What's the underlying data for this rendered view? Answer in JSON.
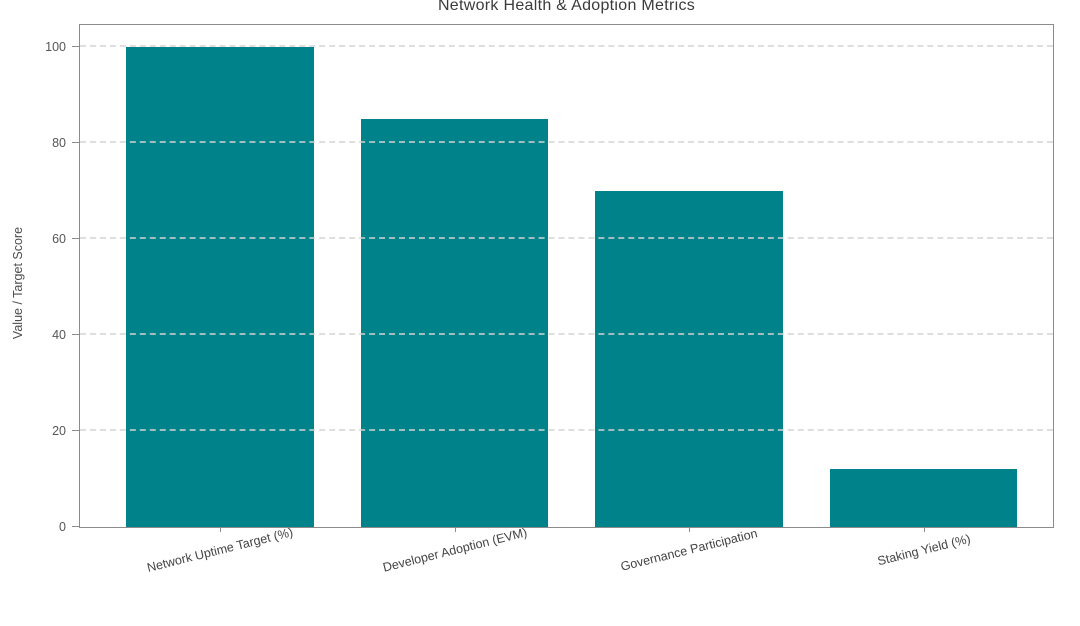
{
  "chart_data": {
    "type": "bar",
    "title": "Network Health & Adoption Metrics",
    "categories": [
      "Network Uptime Target (%)",
      "Developer Adoption (EVM)",
      "Governance Participation",
      "Staking Yield (%)"
    ],
    "values": [
      100,
      85,
      70,
      12
    ],
    "xlabel": "",
    "ylabel": "Value / Target Score",
    "yticks": [
      0,
      20,
      40,
      60,
      80,
      100
    ],
    "ylim": [
      0,
      104.5
    ],
    "grid": true,
    "grid_axis": "y",
    "grid_style": "dashed",
    "legend": "none",
    "x_tick_rotation_deg": 14
  },
  "colors": {
    "bar": "#00828a",
    "spine": "#8b8b8b",
    "gridline": "#d4d4d4",
    "title_text": "#3b3b3b",
    "tick_text": "#565656",
    "background": "#ffffff"
  }
}
